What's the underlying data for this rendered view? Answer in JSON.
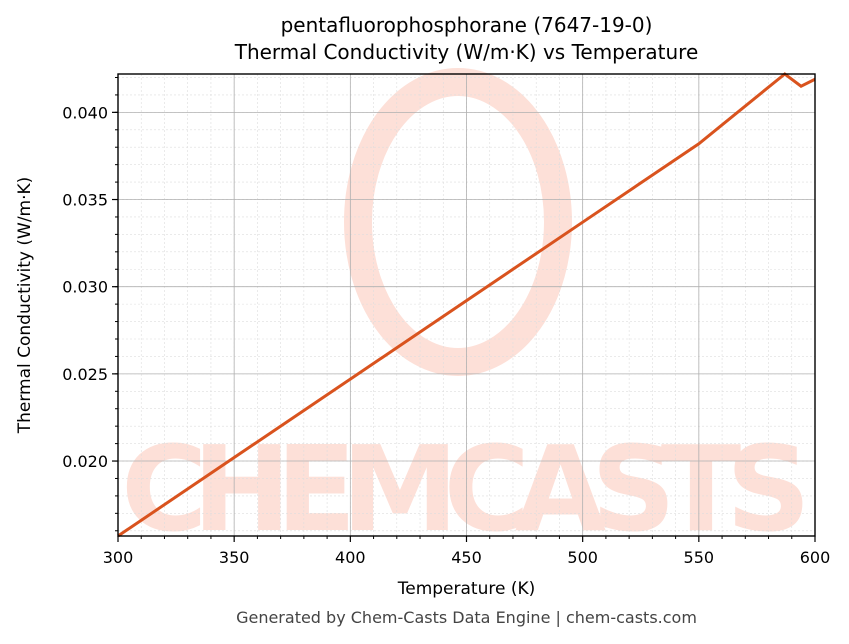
{
  "title_line1": "pentafluorophosphorane (7647-19-0)",
  "title_line2": "Thermal Conductivity (W/m·K) vs Temperature",
  "footer": "Generated by Chem-Casts Data Engine | chem-casts.com",
  "watermark": "CHEMCASTS",
  "colors": {
    "line": "#d9531e",
    "watermark": "#fde0d8",
    "grid_major": "#b0b0b0",
    "grid_minor": "#dddddd"
  },
  "chart_data": {
    "type": "line",
    "title": "pentafluorophosphorane (7647-19-0) Thermal Conductivity (W/m·K) vs Temperature",
    "xlabel": "Temperature (K)",
    "ylabel": "Thermal Conductivity (W/m·K)",
    "xlim": [
      300,
      600
    ],
    "ylim": [
      0.0157,
      0.0422
    ],
    "xticks": [
      300,
      350,
      400,
      450,
      500,
      550,
      600
    ],
    "yticks": [
      "0.020",
      "0.025",
      "0.030",
      "0.035",
      "0.040"
    ],
    "grid": true,
    "series": [
      {
        "name": "Thermal Conductivity",
        "x": [
          300,
          350,
          400,
          450,
          500,
          550,
          587,
          594,
          600
        ],
        "y": [
          0.0157,
          0.0202,
          0.0247,
          0.0292,
          0.0337,
          0.0382,
          0.0422,
          0.0415,
          0.0419
        ]
      }
    ]
  }
}
